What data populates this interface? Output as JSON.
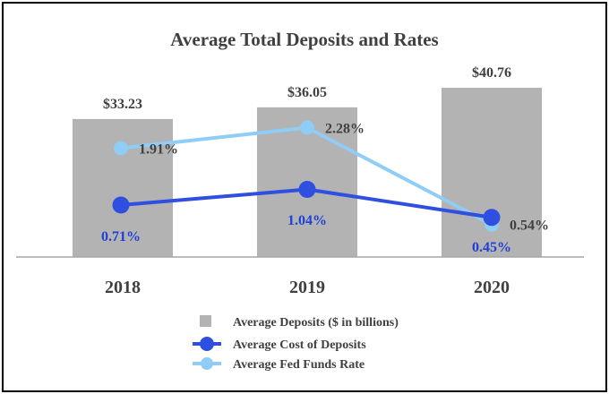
{
  "chart_data": {
    "type": "bar",
    "title": "Average Total Deposits and Rates",
    "categories": [
      "2018",
      "2019",
      "2020"
    ],
    "series": [
      {
        "name": "Average Deposits ($ in billions)",
        "type": "bar",
        "values": [
          33.23,
          36.05,
          40.76
        ],
        "labels": [
          "$33.23",
          "$36.05",
          "$40.76"
        ],
        "color": "#b3b3b3"
      },
      {
        "name": "Average Cost of Deposits",
        "type": "line",
        "values": [
          0.71,
          1.04,
          0.45
        ],
        "labels": [
          "0.71%",
          "1.04%",
          "0.45%"
        ],
        "color": "#2f4fe0"
      },
      {
        "name": "Average Fed Funds Rate",
        "type": "line",
        "values": [
          1.91,
          2.28,
          0.54
        ],
        "labels": [
          "1.91%",
          "2.28%",
          "0.54%"
        ],
        "color": "#8fcdf7"
      }
    ],
    "legend_position": "bottom",
    "grid": false
  }
}
